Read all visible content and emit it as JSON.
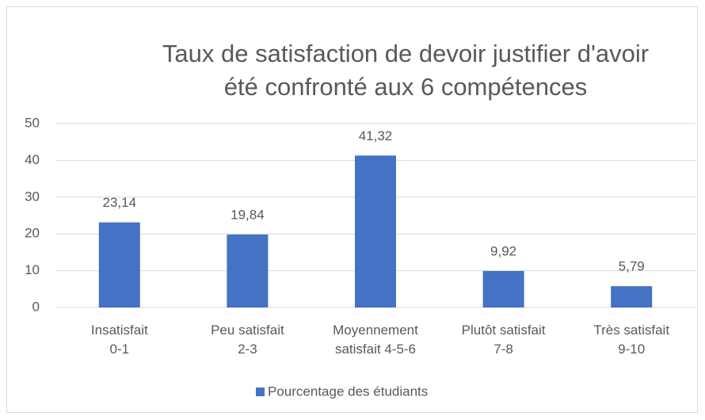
{
  "chart_data": {
    "type": "bar",
    "title": "Taux de satisfaction de devoir justifier d'avoir\nété confronté aux 6 compétences",
    "categories": [
      "Insatisfait\n0-1",
      "Peu satisfait\n2-3",
      "Moyennement\nsatisfait 4-5-6",
      "Plutôt satisfait\n7-8",
      "Très satisfait\n9-10"
    ],
    "series": [
      {
        "name": "Pourcentage des étudiants",
        "color": "#4472c4",
        "values": [
          23.14,
          19.84,
          41.32,
          9.92,
          5.79
        ],
        "value_labels": [
          "23,14",
          "19,84",
          "41,32",
          "9,92",
          "5,79"
        ]
      }
    ],
    "ylim": [
      0,
      50
    ],
    "yticks": [
      0,
      10,
      20,
      30,
      40,
      50
    ],
    "grid": true,
    "legend": "bottom"
  }
}
